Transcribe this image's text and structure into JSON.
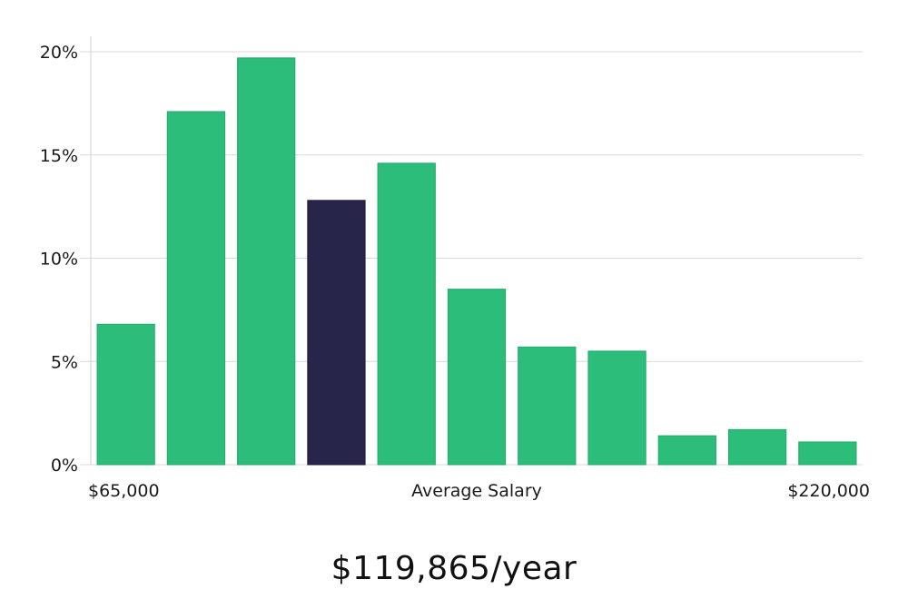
{
  "chart_data": {
    "type": "bar",
    "categories": [
      "",
      "",
      "",
      "",
      "",
      "",
      "",
      "",
      "",
      "",
      ""
    ],
    "values": [
      6.8,
      17.1,
      19.7,
      12.8,
      14.6,
      8.5,
      5.7,
      5.5,
      1.4,
      1.7,
      1.1
    ],
    "highlight_index": 3,
    "ylim": [
      0,
      20
    ],
    "yticks": [
      0,
      5,
      10,
      15,
      20
    ],
    "ytick_labels": [
      "0%",
      "5%",
      "10%",
      "15%",
      "20%"
    ],
    "x_start_label": "$65,000",
    "xlabel": "Average Salary",
    "x_end_label": "$220,000",
    "grid": true,
    "colors": {
      "bar": "#2bbd79",
      "highlight": "#28254a",
      "grid": "#d9d9d9"
    }
  },
  "summary": {
    "average_salary_text": "$119,865/year"
  }
}
